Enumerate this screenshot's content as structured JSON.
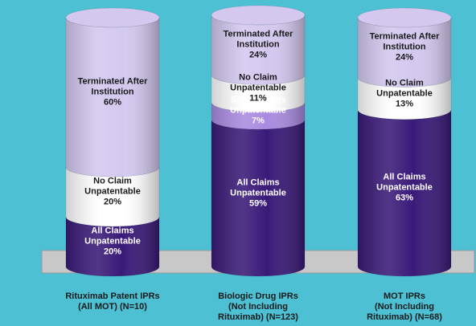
{
  "chart_data": {
    "type": "bar",
    "stacked": true,
    "percent": true,
    "categories": [
      "Rituximab Patent IPRs\n(All MOT) (N=10)",
      "Biologic Drug IPRs\n(Not Including\nRituximab) (N=123)",
      "MOT IPRs\n(Not Including\nRituximab) (N=68)"
    ],
    "series": [
      {
        "name": "All Claims Unpatentable",
        "label": "All Claims\nUnpatentable",
        "color": "#3a1a78",
        "text_color": "#ffffff",
        "values": [
          20,
          59,
          63
        ]
      },
      {
        "name": "Some Claims Unpatentable",
        "label": "Some Claims\nUnpatentable",
        "color": "#a98be0",
        "text_color": "#ffffff",
        "values": [
          0,
          7,
          0
        ]
      },
      {
        "name": "No Claim Unpatentable",
        "label": "No Claim\nUnpatentable",
        "color": "#ffffff",
        "text_color": "#1a1a1a",
        "values": [
          20,
          11,
          13
        ]
      },
      {
        "name": "Terminated After Institution",
        "label": "Terminated After\nInstitution",
        "color": "#d4c8ef",
        "text_color": "#1a1a1a",
        "values": [
          60,
          24,
          24
        ]
      }
    ],
    "ylim": [
      0,
      100
    ],
    "grid": false,
    "legend": "none"
  }
}
